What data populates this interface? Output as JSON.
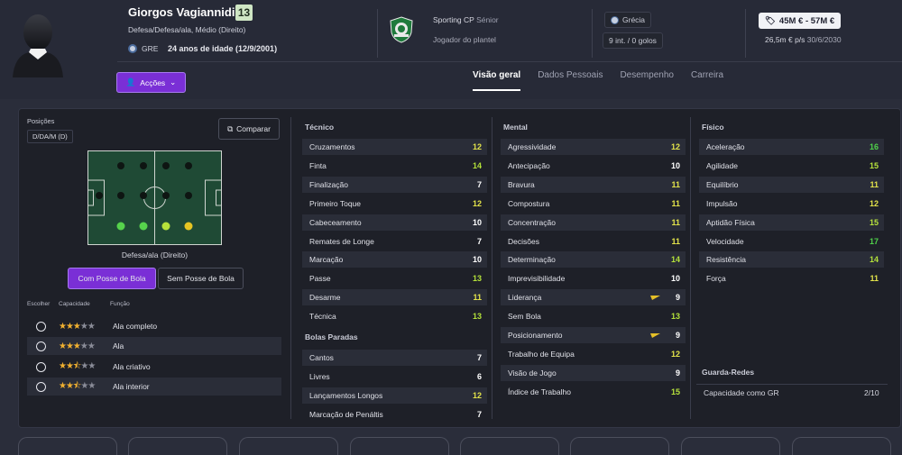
{
  "player": {
    "name": "Giorgos Vagiannidis",
    "number": "13",
    "positions": "Defesa/Defesa/ala, Médio (Direito)",
    "nation_code": "GRE",
    "age": "24 anos de idade (12/9/2001)"
  },
  "actions_label": "Acções",
  "club": {
    "name": "Sporting CP",
    "team": "Sénior",
    "role": "Jogador do plantel"
  },
  "nation": {
    "name": "Grécia",
    "caps": "9 int. / 0 golos"
  },
  "value": {
    "range": "45M € - 57M €",
    "wage": "26,5m € p/s",
    "contract": "30/6/2030"
  },
  "tabs": [
    "Visão geral",
    "Dados Pessoais",
    "Desempenho",
    "Carreira"
  ],
  "left": {
    "positions_label": "Posições",
    "pos_badge": "D/DA/M (D)",
    "compare": "Comparar",
    "pitch_caption": "Defesa/ala (Direito)",
    "btn_with": "Com Posse de Bola",
    "btn_without": "Sem Posse de Bola",
    "col_choose": "Escolher",
    "col_ability": "Capacidade",
    "col_role": "Função",
    "roles": [
      {
        "name": "Ala completo",
        "stars": 3
      },
      {
        "name": "Ala",
        "stars": 3
      },
      {
        "name": "Ala criativo",
        "stars": 2.5
      },
      {
        "name": "Ala interior",
        "stars": 2.5
      }
    ]
  },
  "technical": {
    "title": "Técnico",
    "items": [
      [
        "Cruzamentos",
        "12"
      ],
      [
        "Finta",
        "14"
      ],
      [
        "Finalização",
        "7"
      ],
      [
        "Primeiro Toque",
        "12"
      ],
      [
        "Cabeceamento",
        "10"
      ],
      [
        "Remates de Longe",
        "7"
      ],
      [
        "Marcação",
        "10"
      ],
      [
        "Passe",
        "13"
      ],
      [
        "Desarme",
        "11"
      ],
      [
        "Técnica",
        "13"
      ]
    ]
  },
  "setpieces": {
    "title": "Bolas Paradas",
    "items": [
      [
        "Cantos",
        "7"
      ],
      [
        "Livres",
        "6"
      ],
      [
        "Lançamentos Longos",
        "12"
      ],
      [
        "Marcação de Penáltis",
        "7"
      ]
    ]
  },
  "mental": {
    "title": "Mental",
    "items": [
      [
        "Agressividade",
        "12"
      ],
      [
        "Antecipação",
        "10"
      ],
      [
        "Bravura",
        "11"
      ],
      [
        "Compostura",
        "11"
      ],
      [
        "Concentração",
        "11"
      ],
      [
        "Decisões",
        "11"
      ],
      [
        "Determinação",
        "14"
      ],
      [
        "Imprevisibilidade",
        "10"
      ],
      [
        "Liderança",
        "9"
      ],
      [
        "Sem Bola",
        "13"
      ],
      [
        "Posicionamento",
        "9"
      ],
      [
        "Trabalho de Equipa",
        "12"
      ],
      [
        "Visão de Jogo",
        "9"
      ],
      [
        "Índice de Trabalho",
        "15"
      ]
    ]
  },
  "physical": {
    "title": "Físico",
    "items": [
      [
        "Aceleração",
        "16"
      ],
      [
        "Agilidade",
        "15"
      ],
      [
        "Equilíbrio",
        "11"
      ],
      [
        "Impulsão",
        "12"
      ],
      [
        "Aptidão Física",
        "15"
      ],
      [
        "Velocidade",
        "17"
      ],
      [
        "Resistência",
        "14"
      ],
      [
        "Força",
        "11"
      ]
    ]
  },
  "gk": {
    "title": "Guarda-Redes",
    "label": "Capacidade como GR",
    "value": "2/10"
  },
  "colors": {
    "accent": "#7a2fd6",
    "v17": "#4fd14a",
    "v15": "#b4e23a",
    "v12": "#e3e34a",
    "v10": "#ffffff"
  }
}
